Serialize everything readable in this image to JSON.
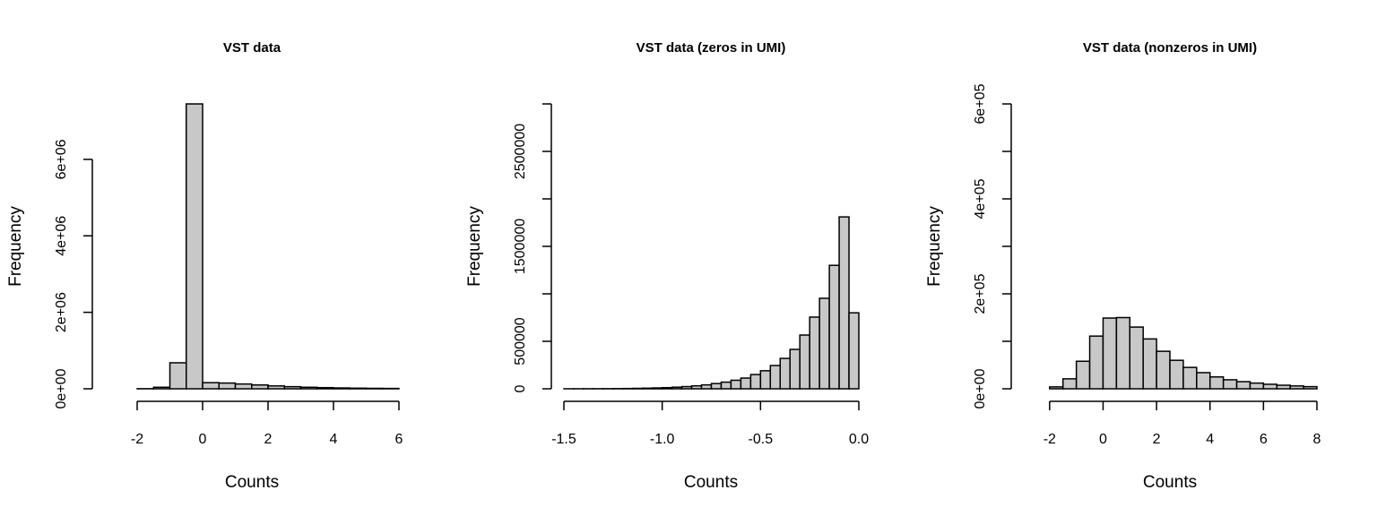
{
  "chart_data": [
    {
      "type": "bar",
      "title": "VST data",
      "xlabel": "Counts",
      "ylabel": "Frequency",
      "xlim": [
        -3,
        6
      ],
      "ylim": [
        0,
        7450000
      ],
      "bin_width": 0.5,
      "bin_start": -3,
      "values": [
        0,
        0,
        3000,
        40000,
        680000,
        7450000,
        160000,
        150000,
        125000,
        100000,
        75000,
        55000,
        40000,
        30000,
        22000,
        16000,
        12000,
        9000
      ],
      "xticks": [
        -2,
        0,
        2,
        4,
        6
      ],
      "xtick_labels": [
        "-2",
        "0",
        "2",
        "4",
        "6"
      ],
      "yticks": [
        0,
        2000000,
        4000000,
        6000000
      ],
      "ytick_labels": [
        "0e+00",
        "2e+06",
        "4e+06",
        "6e+06"
      ],
      "bar_color": "#c8c8c8"
    },
    {
      "type": "bar",
      "title": "VST data (zeros in UMI)",
      "xlabel": "Counts",
      "ylabel": "Frequency",
      "xlim": [
        -1.5,
        0
      ],
      "ylim": [
        0,
        3000000
      ],
      "bin_width": 0.05,
      "bin_start": -1.5,
      "values": [
        200,
        400,
        600,
        900,
        1400,
        2000,
        3000,
        4500,
        6500,
        9000,
        12000,
        17000,
        23000,
        31000,
        41000,
        55000,
        70000,
        90000,
        113000,
        150000,
        190000,
        245000,
        320000,
        415000,
        566000,
        755000,
        953000,
        1300000,
        1810000,
        800000
      ],
      "xticks": [
        -1.5,
        -1.0,
        -0.5,
        0.0
      ],
      "xtick_labels": [
        "-1.5",
        "-1.0",
        "-0.5",
        "0.0"
      ],
      "yticks": [
        0,
        500000,
        1000000,
        1500000,
        2000000,
        2500000,
        3000000
      ],
      "ytick_labels": [
        "0",
        "500000",
        "",
        "1500000",
        "",
        "2500000",
        ""
      ],
      "bar_color": "#c8c8c8"
    },
    {
      "type": "bar",
      "title": "VST data (nonzeros in UMI)",
      "xlabel": "Counts",
      "ylabel": "Frequency",
      "xlim": [
        -3,
        8
      ],
      "ylim": [
        0,
        600000
      ],
      "bin_width": 0.5,
      "bin_start": -3,
      "values": [
        0,
        0,
        4000,
        21000,
        58000,
        111000,
        149000,
        150000,
        130000,
        105000,
        79000,
        60000,
        45000,
        34000,
        25000,
        19000,
        15000,
        12000,
        9500,
        7500,
        6000,
        4500
      ],
      "xticks": [
        -2,
        0,
        2,
        4,
        6,
        8
      ],
      "xtick_labels": [
        "-2",
        "0",
        "2",
        "4",
        "6",
        "8"
      ],
      "yticks": [
        0,
        100000,
        200000,
        300000,
        400000,
        500000,
        600000
      ],
      "ytick_labels": [
        "0e+00",
        "",
        "2e+05",
        "",
        "4e+05",
        "",
        "6e+05"
      ],
      "bar_color": "#c8c8c8"
    }
  ]
}
